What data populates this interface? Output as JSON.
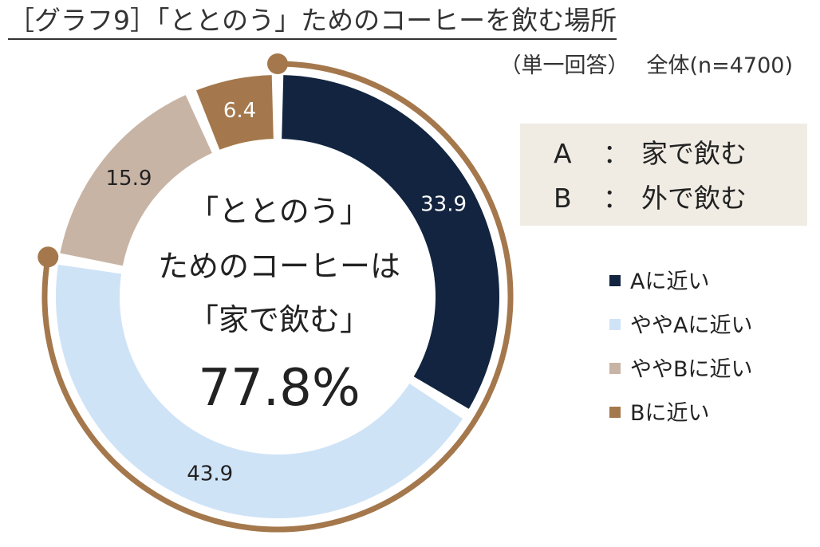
{
  "title": "［グラフ9］「ととのう」ためのコーヒーを飲む場所",
  "subtitle": {
    "question_type": "（単一回答）",
    "base": "全体(n=4700)"
  },
  "center": {
    "line1": "「ととのう」",
    "line2": "ためのコーヒーは",
    "line3": "「家で飲む」",
    "value": "77.8%"
  },
  "definitions": [
    {
      "key": "A",
      "colon": "：",
      "text": "家で飲む"
    },
    {
      "key": "B",
      "colon": "：",
      "text": "外で飲む"
    }
  ],
  "chart_data": {
    "type": "pie",
    "style": "donut",
    "categories": [
      "Aに近い",
      "ややAに近い",
      "ややBに近い",
      "Bに近い"
    ],
    "values": [
      33.9,
      43.9,
      15.9,
      6.4
    ],
    "value_labels": [
      "33.9",
      "43.9",
      "15.9",
      "6.4"
    ],
    "colors": [
      "#12243f",
      "#cfe3f7",
      "#c8b4a5",
      "#a4784c"
    ],
    "label_colors": [
      "#ffffff",
      "#222222",
      "#222222",
      "#ffffff"
    ],
    "bracket_color": "#a4784c",
    "legend_position": "right"
  }
}
